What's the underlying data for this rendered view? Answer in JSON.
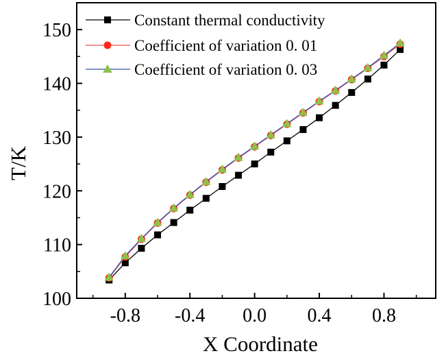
{
  "chart_data": {
    "type": "line",
    "title": "",
    "xlabel": "X Coordinate",
    "ylabel": "T/K",
    "xlim": [
      -1.1,
      1.12
    ],
    "ylim": [
      100,
      155
    ],
    "xticks": [
      -0.8,
      -0.4,
      0.0,
      0.4,
      0.8
    ],
    "xtick_labels": [
      "-0.8",
      "-0.4",
      "0.0",
      "0.4",
      "0.8"
    ],
    "yticks": [
      100,
      110,
      120,
      130,
      140,
      150
    ],
    "ytick_labels": [
      "100",
      "110",
      "120",
      "130",
      "140",
      "150"
    ],
    "x": [
      -0.9,
      -0.8,
      -0.7,
      -0.6,
      -0.5,
      -0.4,
      -0.3,
      -0.2,
      -0.1,
      0.0,
      0.1,
      0.2,
      0.3,
      0.4,
      0.5,
      0.6,
      0.7,
      0.8,
      0.9
    ],
    "legend_position": "top-left",
    "series": [
      {
        "name": "Constant thermal conductivity",
        "marker": "square",
        "color": "#000000",
        "line_color": "#000000",
        "values": [
          103.4,
          106.6,
          109.3,
          111.8,
          114.1,
          116.4,
          118.6,
          120.8,
          122.9,
          125.0,
          127.2,
          129.3,
          131.4,
          133.6,
          135.9,
          138.3,
          140.8,
          143.4,
          146.3
        ]
      },
      {
        "name": "Coefficient of variation 0. 01",
        "marker": "circle",
        "color": "#ff2a1a",
        "line_color": "#e05050",
        "values": [
          103.8,
          107.7,
          111.0,
          114.0,
          116.7,
          119.2,
          121.6,
          123.9,
          126.1,
          128.2,
          130.3,
          132.4,
          134.5,
          136.6,
          138.6,
          140.7,
          142.8,
          145.0,
          147.3
        ]
      },
      {
        "name": "Coefficient of variation 0. 03",
        "marker": "triangle",
        "color": "#8bc34a",
        "line_color": "#3a4fb0",
        "values": [
          103.9,
          107.9,
          111.1,
          114.1,
          116.8,
          119.3,
          121.7,
          124.0,
          126.2,
          128.3,
          130.4,
          132.5,
          134.6,
          136.7,
          138.7,
          140.8,
          142.9,
          145.2,
          147.5
        ]
      }
    ]
  }
}
